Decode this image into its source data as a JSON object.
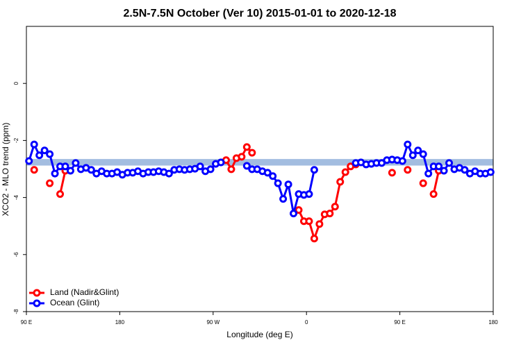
{
  "chart_data": {
    "type": "line",
    "title": "2.5N-7.5N October (Ver 10)   2015-01-01 to 2020-12-18",
    "x_label": "Longitude (deg E)",
    "y_label": "XCO2 - MLO trend (ppm)",
    "xlim": [
      90,
      540
    ],
    "ylim": [
      -8,
      2
    ],
    "xticks": [
      {
        "value": 90,
        "label": "90 E"
      },
      180,
      {
        "value": 270,
        "label": "90 W"
      },
      {
        "value": 360,
        "label": "0"
      },
      {
        "value": 450,
        "label": "90 E"
      },
      {
        "value": 540,
        "label": "180"
      }
    ],
    "yticks": [
      -8,
      -6,
      -4,
      -2,
      0
    ],
    "legend": "bottom-left",
    "band": {
      "values": [
        -2.88,
        -2.65
      ],
      "color": "#a3bde0"
    },
    "x": [
      92.5,
      97.5,
      102.5,
      107.5,
      112.5,
      117.5,
      122.5,
      127.5,
      132.5,
      137.5,
      142.5,
      147.5,
      152.5,
      157.5,
      162.5,
      167.5,
      172.5,
      177.5,
      182.5,
      187.5,
      192.5,
      197.5,
      202.5,
      207.5,
      212.5,
      217.5,
      222.5,
      227.5,
      232.5,
      237.5,
      242.5,
      247.5,
      252.5,
      257.5,
      262.5,
      267.5,
      272.5,
      277.5,
      282.5,
      287.5,
      292.5,
      297.5,
      302.5,
      307.5,
      312.5,
      317.5,
      322.5,
      327.5,
      332.5,
      337.5,
      342.5,
      347.5,
      352.5,
      357.5,
      362.5,
      367.5,
      372.5,
      377.5,
      382.5,
      387.5,
      392.5,
      397.5,
      402.5,
      407.5,
      412.5,
      417.5,
      422.5,
      427.5,
      432.5,
      437.5,
      442.5,
      447.5,
      452.5,
      457.5,
      462.5,
      467.5,
      472.5,
      477.5,
      482.5,
      487.5,
      492.5,
      497.5,
      502.5,
      507.5,
      512.5,
      517.5,
      522.5,
      527.5,
      532.5,
      537.5
    ],
    "series": [
      {
        "name": "Land (Nadir&Glint)",
        "color": "#ff0000",
        "values": [
          null,
          -3.03,
          null,
          null,
          -3.5,
          null,
          -3.88,
          -3.06,
          null,
          null,
          null,
          null,
          null,
          null,
          null,
          null,
          null,
          null,
          null,
          null,
          null,
          null,
          null,
          null,
          null,
          null,
          null,
          null,
          null,
          null,
          null,
          null,
          null,
          null,
          null,
          null,
          null,
          null,
          -2.69,
          -3.01,
          -2.62,
          -2.57,
          -2.23,
          -2.43,
          null,
          null,
          null,
          null,
          null,
          null,
          null,
          null,
          -4.44,
          -4.83,
          -4.83,
          -5.44,
          -4.93,
          -4.59,
          -4.56,
          -4.32,
          -3.45,
          -3.11,
          -2.91,
          -2.84,
          null,
          null,
          null,
          null,
          null,
          null,
          -3.13,
          null,
          null,
          -3.03,
          null,
          null,
          -3.5,
          null,
          -3.88,
          -3.06,
          null,
          null,
          null,
          null,
          null,
          null,
          null,
          null,
          null,
          null
        ]
      },
      {
        "name": "Ocean (Glint)",
        "color": "#0000ff",
        "values": [
          -2.72,
          -2.14,
          -2.52,
          -2.35,
          -2.48,
          -3.16,
          -2.91,
          -2.91,
          -3.06,
          -2.79,
          -3.01,
          -2.96,
          -3.03,
          -3.16,
          -3.08,
          -3.16,
          -3.16,
          -3.11,
          -3.2,
          -3.13,
          -3.13,
          -3.08,
          -3.16,
          -3.11,
          -3.11,
          -3.08,
          -3.11,
          -3.16,
          -3.03,
          -3.01,
          -3.03,
          -3.01,
          -2.99,
          -2.91,
          -3.08,
          -3.01,
          -2.82,
          -2.77,
          null,
          null,
          null,
          null,
          -2.89,
          -3.01,
          -3.01,
          -3.08,
          -3.13,
          -3.25,
          -3.5,
          -4.05,
          -3.54,
          -4.56,
          -3.88,
          -3.91,
          -3.88,
          -3.03,
          null,
          null,
          null,
          null,
          null,
          null,
          null,
          -2.79,
          -2.77,
          -2.84,
          -2.82,
          -2.79,
          -2.79,
          -2.69,
          -2.67,
          -2.69,
          -2.72,
          -2.14,
          -2.52,
          -2.35,
          -2.48,
          -3.16,
          -2.91,
          -2.91,
          -3.06,
          -2.79,
          -3.01,
          -2.96,
          -3.03,
          -3.16,
          -3.08,
          -3.16,
          -3.16,
          -3.11
        ]
      }
    ]
  }
}
